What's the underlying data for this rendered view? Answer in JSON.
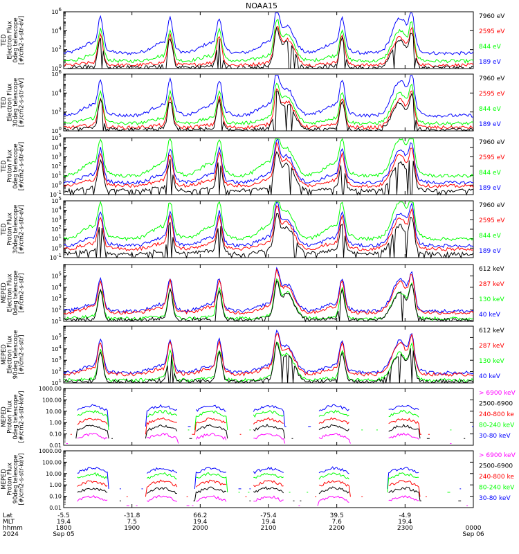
{
  "title": "NOAA15",
  "colors": {
    "black": "#000000",
    "red": "#ff0000",
    "green": "#00ff00",
    "blue": "#0000ff",
    "magenta": "#ff00ff"
  },
  "chart_data": [
    {
      "type": "line",
      "ylabel": [
        "TED",
        "Electron Flux",
        "0deg telescope",
        "[#/cm2-s-str-eV]"
      ],
      "yscale": "log",
      "ylim_exp": [
        0,
        6
      ],
      "ytick_labels": [
        "10^0",
        "10^2",
        "10^4",
        "10^6"
      ],
      "legend": [
        {
          "label": "7960 eV",
          "color": "black"
        },
        {
          "label": "2595 eV",
          "color": "red"
        },
        {
          "label": "844 eV",
          "color": "green"
        },
        {
          "label": "189 eV",
          "color": "blue"
        }
      ]
    },
    {
      "type": "line",
      "ylabel": [
        "TED",
        "Electron Flux",
        "30deg telescope",
        "[#/cm2-s-str-eV]"
      ],
      "yscale": "log",
      "ylim_exp": [
        0,
        6
      ],
      "ytick_labels": [
        "10^0",
        "10^2",
        "10^4",
        "10^6"
      ],
      "legend": [
        {
          "label": "7960 eV",
          "color": "black"
        },
        {
          "label": "2595 eV",
          "color": "red"
        },
        {
          "label": "844 eV",
          "color": "green"
        },
        {
          "label": "189 eV",
          "color": "blue"
        }
      ]
    },
    {
      "type": "line",
      "ylabel": [
        "TED",
        "Proton Flux",
        "0deg telescope",
        "[#/cm2-s-str-eV]"
      ],
      "yscale": "log",
      "ylim_exp": [
        -1,
        5
      ],
      "ytick_labels": [
        "10^-1",
        "10^0",
        "10^1",
        "10^2",
        "10^3",
        "10^4",
        "10^5"
      ],
      "legend": [
        {
          "label": "7960 eV",
          "color": "black"
        },
        {
          "label": "2595 eV",
          "color": "red"
        },
        {
          "label": "844 eV",
          "color": "green"
        },
        {
          "label": "189 eV",
          "color": "blue"
        }
      ]
    },
    {
      "type": "line",
      "ylabel": [
        "TED",
        "Proton Flux",
        "30deg telescope",
        "[#/cm2-s-str-eV]"
      ],
      "yscale": "log",
      "ylim_exp": [
        -1,
        5
      ],
      "ytick_labels": [
        "10^-1",
        "10^0",
        "10^1",
        "10^2",
        "10^3",
        "10^4",
        "10^5"
      ],
      "legend": [
        {
          "label": "7960 eV",
          "color": "black"
        },
        {
          "label": "2595 eV",
          "color": "red"
        },
        {
          "label": "844 eV",
          "color": "green"
        },
        {
          "label": "189 eV",
          "color": "blue"
        }
      ]
    },
    {
      "type": "line",
      "ylabel": [
        "MEPED",
        "Electron Flux",
        "0deg telescope",
        "[#/cm2-s-str]"
      ],
      "yscale": "log",
      "ylim_exp": [
        1,
        6
      ],
      "ytick_labels": [
        "10^1",
        "10^2",
        "10^3",
        "10^4",
        "10^5"
      ],
      "legend": [
        {
          "label": "612 keV",
          "color": "black"
        },
        {
          "label": "287 keV",
          "color": "red"
        },
        {
          "label": "130 keV",
          "color": "green"
        },
        {
          "label": "40 keV",
          "color": "blue"
        }
      ]
    },
    {
      "type": "line",
      "ylabel": [
        "MEPED",
        "Electron Flux",
        "90deg telescope",
        "[#/cm2-s-str]"
      ],
      "yscale": "log",
      "ylim_exp": [
        1,
        6
      ],
      "ytick_labels": [
        "10^1",
        "10^2",
        "10^3",
        "10^4",
        "10^5"
      ],
      "legend": [
        {
          "label": "612 keV",
          "color": "black"
        },
        {
          "label": "287 keV",
          "color": "red"
        },
        {
          "label": "130 keV",
          "color": "green"
        },
        {
          "label": "40 keV",
          "color": "blue"
        }
      ]
    },
    {
      "type": "line",
      "ylabel": [
        "MEPED",
        "Proton Flux",
        "0deg telescope",
        "[#/cm2-s-str-keV]"
      ],
      "yscale": "log",
      "ylim_exp": [
        -2,
        3
      ],
      "ytick_labels": [
        "0.01",
        "0.10",
        "1.00",
        "10.00",
        "100.00",
        "1000.00"
      ],
      "legend": [
        {
          "label": "> 6900 keV",
          "color": "magenta"
        },
        {
          "label": "2500-6900",
          "color": "black"
        },
        {
          "label": "240-800 ke",
          "color": "red"
        },
        {
          "label": "80-240 keV",
          "color": "green"
        },
        {
          "label": "30-80 keV",
          "color": "blue"
        }
      ]
    },
    {
      "type": "line",
      "ylabel": [
        "MEPED",
        "Proton Flux",
        "90deg telescope",
        "[#/cm2-s-str-keV]"
      ],
      "yscale": "log",
      "ylim_exp": [
        -2,
        3
      ],
      "ytick_labels": [
        "0.01",
        "0.10",
        "1.00",
        "10.00",
        "100.00",
        "1000.00"
      ],
      "legend": [
        {
          "label": "> 6900 keV",
          "color": "magenta"
        },
        {
          "label": "2500-6900",
          "color": "black"
        },
        {
          "label": "240-800 ke",
          "color": "red"
        },
        {
          "label": "80-240 keV",
          "color": "green"
        },
        {
          "label": "30-80 keV",
          "color": "blue"
        }
      ]
    }
  ],
  "xaxis": {
    "row_labels": [
      "Lat",
      "MLT",
      "hhmm",
      "2024"
    ],
    "ticks": [
      {
        "lat": "-5.5",
        "mlt": "19.4",
        "hhmm": "1800",
        "date": "Sep 05"
      },
      {
        "lat": "-31.8",
        "mlt": "7.5",
        "hhmm": "1900",
        "date": ""
      },
      {
        "lat": "66.2",
        "mlt": "19.4",
        "hhmm": "2000",
        "date": ""
      },
      {
        "lat": "-75.4",
        "mlt": "19.4",
        "hhmm": "2100",
        "date": ""
      },
      {
        "lat": "39.5",
        "mlt": "7.6",
        "hhmm": "2200",
        "date": ""
      },
      {
        "lat": "-4.9",
        "mlt": "19.4",
        "hhmm": "2300",
        "date": ""
      },
      {
        "lat": "",
        "mlt": "",
        "hhmm": "0000",
        "date": "Sep 06"
      }
    ]
  }
}
